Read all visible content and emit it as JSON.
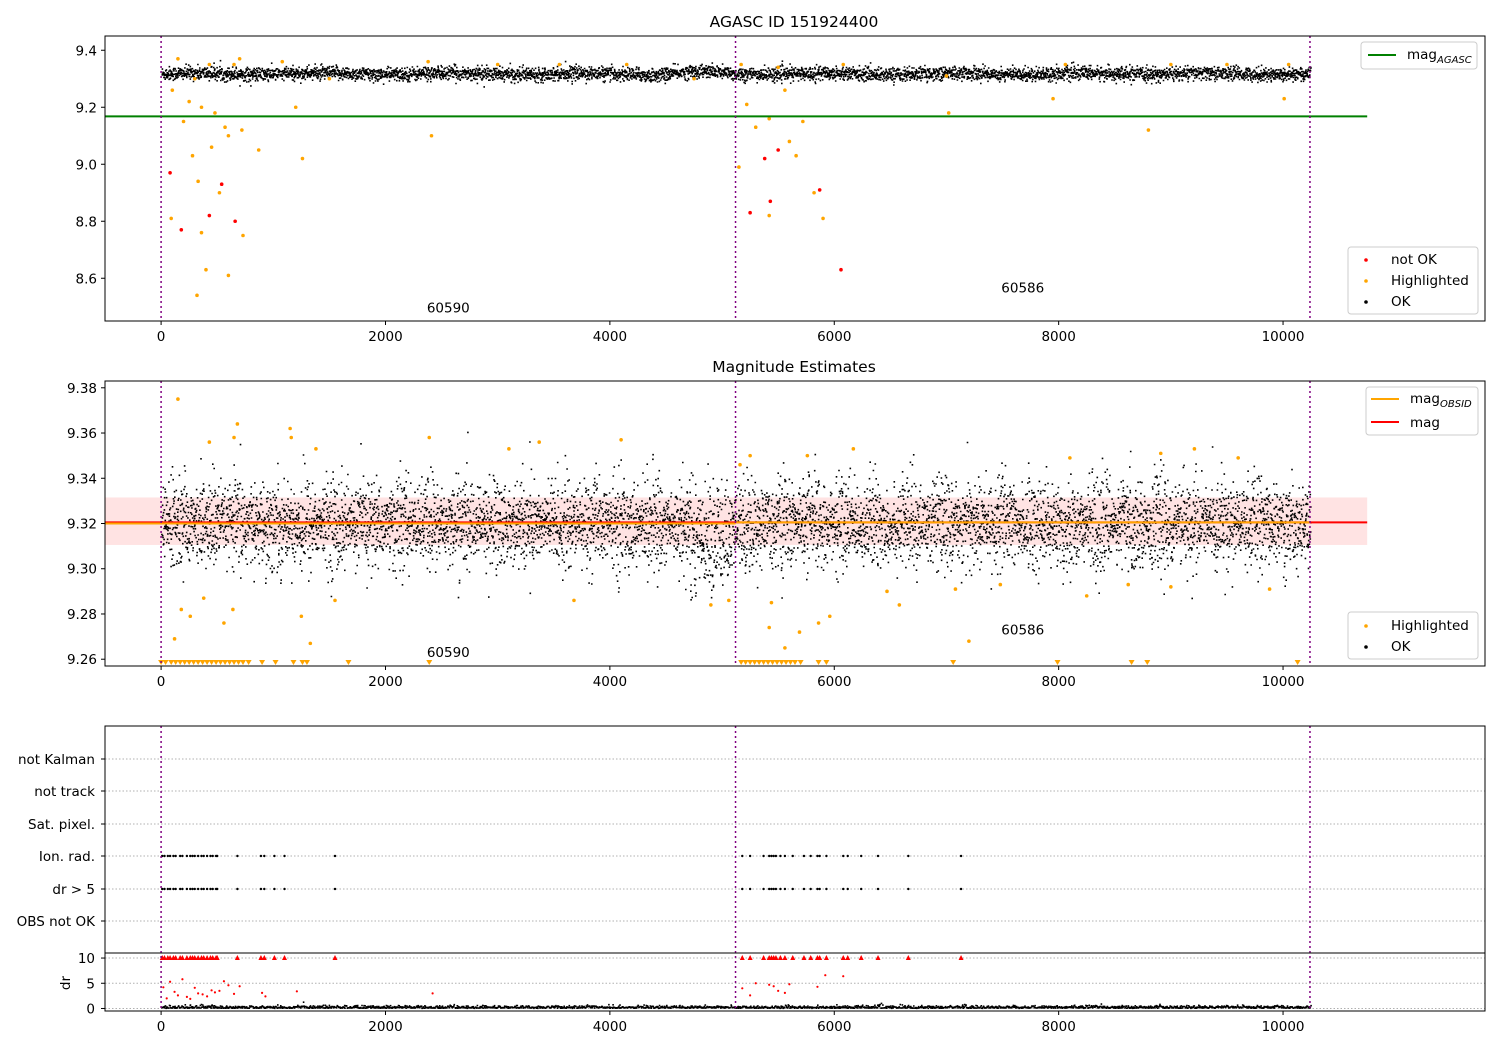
{
  "figure": {
    "obs_boundaries_x": [
      0,
      5120,
      10240
    ],
    "obs_labels": [
      {
        "text": "60590",
        "x": 2560,
        "panel": 0,
        "y": 8.48
      },
      {
        "text": "60586",
        "x": 7680,
        "panel": 0,
        "y": 8.55
      },
      {
        "text": "60590",
        "x": 2560,
        "panel": 1,
        "y": 9.261
      },
      {
        "text": "60586",
        "x": 7680,
        "panel": 1,
        "y": 9.271
      }
    ],
    "colors": {
      "ok": "#000000",
      "highlighted": "#ffa500",
      "not_ok": "#ff0000",
      "agasc_line": "#008000",
      "obs_line": "#ffa500",
      "mag_line": "#ff0000",
      "band": "#ffc0c0",
      "boundary": "#800080"
    }
  },
  "chart_data": [
    {
      "type": "scatter",
      "title": "AGASC ID 151924400",
      "xlim": [
        -500,
        11800
      ],
      "ylim": [
        8.45,
        9.45
      ],
      "x_ticks": [
        "0",
        "2000",
        "4000",
        "6000",
        "8000",
        "10000"
      ],
      "y_ticks": [
        "8.6",
        "8.8",
        "9.0",
        "9.2",
        "9.4"
      ],
      "hlines": [
        {
          "name": "mag_AGASC",
          "y": 9.168,
          "color": "#008000"
        }
      ],
      "series": [
        {
          "name": "not OK",
          "color": "#ff0000",
          "points": [
            [
              80,
              8.97
            ],
            [
              180,
              8.77
            ],
            [
              430,
              8.82
            ],
            [
              540,
              8.93
            ],
            [
              660,
              8.8
            ],
            [
              5380,
              9.02
            ],
            [
              5250,
              8.83
            ],
            [
              5430,
              8.87
            ],
            [
              5870,
              8.91
            ],
            [
              6060,
              8.63
            ],
            [
              5500,
              9.05
            ]
          ]
        },
        {
          "name": "Highlighted",
          "color": "#ffa500",
          "points": [
            [
              150,
              9.37
            ],
            [
              300,
              9.3
            ],
            [
              430,
              9.35
            ],
            [
              650,
              9.35
            ],
            [
              700,
              9.37
            ],
            [
              1080,
              9.36
            ],
            [
              1500,
              9.3
            ],
            [
              2380,
              9.36
            ],
            [
              3000,
              9.35
            ],
            [
              3550,
              9.35
            ],
            [
              4150,
              9.35
            ],
            [
              4750,
              9.3
            ],
            [
              5170,
              9.35
            ],
            [
              5500,
              9.34
            ],
            [
              6080,
              9.35
            ],
            [
              7000,
              9.31
            ],
            [
              8060,
              9.35
            ],
            [
              9000,
              9.35
            ],
            [
              9500,
              9.35
            ],
            [
              10050,
              9.35
            ],
            [
              100,
              9.26
            ],
            [
              250,
              9.22
            ],
            [
              360,
              9.2
            ],
            [
              480,
              9.18
            ],
            [
              570,
              9.13
            ],
            [
              720,
              9.12
            ],
            [
              870,
              9.05
            ],
            [
              1200,
              9.2
            ],
            [
              1260,
              9.02
            ],
            [
              2410,
              9.1
            ],
            [
              200,
              9.15
            ],
            [
              280,
              9.03
            ],
            [
              330,
              8.94
            ],
            [
              450,
              9.06
            ],
            [
              520,
              8.9
            ],
            [
              600,
              9.1
            ],
            [
              90,
              8.81
            ],
            [
              400,
              8.63
            ],
            [
              320,
              8.54
            ],
            [
              600,
              8.61
            ],
            [
              730,
              8.75
            ],
            [
              360,
              8.76
            ],
            [
              5220,
              9.21
            ],
            [
              5300,
              9.13
            ],
            [
              5420,
              9.16
            ],
            [
              5560,
              9.26
            ],
            [
              5600,
              9.08
            ],
            [
              5720,
              9.15
            ],
            [
              5820,
              8.9
            ],
            [
              5900,
              8.81
            ],
            [
              5150,
              8.99
            ],
            [
              5420,
              8.82
            ],
            [
              5660,
              9.03
            ],
            [
              7950,
              9.23
            ],
            [
              8800,
              9.12
            ],
            [
              10010,
              9.23
            ],
            [
              7020,
              9.18
            ]
          ]
        },
        {
          "name": "OK",
          "color": "#000000",
          "band": [
            9.29,
            9.35
          ]
        }
      ],
      "legends": [
        {
          "entries": [
            "mag_AGASC"
          ],
          "loc": "upper right"
        },
        {
          "entries": [
            "not OK",
            "Highlighted",
            "OK"
          ],
          "loc": "lower right"
        }
      ]
    },
    {
      "type": "scatter",
      "title": "Magnitude Estimates",
      "xlim": [
        -500,
        11800
      ],
      "ylim": [
        9.257,
        9.383
      ],
      "x_ticks": [
        "0",
        "2000",
        "4000",
        "6000",
        "8000",
        "10000"
      ],
      "y_ticks": [
        "9.26",
        "9.28",
        "9.30",
        "9.32",
        "9.34",
        "9.36",
        "9.38"
      ],
      "hlines": [
        {
          "name": "mag_OBSID",
          "segments": [
            [
              -500,
              5120,
              9.32
            ],
            [
              5120,
              10240,
              9.3205
            ]
          ],
          "color": "#ffa500"
        },
        {
          "name": "mag",
          "y": 9.3205,
          "color": "#ff0000",
          "band": [
            9.3105,
            9.3315
          ]
        }
      ],
      "series": [
        {
          "name": "Highlighted",
          "color": "#ffa500",
          "points": [
            [
              150,
              9.375
            ],
            [
              120,
              9.269
            ],
            [
              180,
              9.282
            ],
            [
              260,
              9.279
            ],
            [
              380,
              9.287
            ],
            [
              430,
              9.356
            ],
            [
              560,
              9.276
            ],
            [
              640,
              9.282
            ],
            [
              650,
              9.358
            ],
            [
              680,
              9.364
            ],
            [
              1150,
              9.362
            ],
            [
              1160,
              9.358
            ],
            [
              1380,
              9.353
            ],
            [
              1250,
              9.279
            ],
            [
              1330,
              9.267
            ],
            [
              1550,
              9.286
            ],
            [
              2390,
              9.358
            ],
            [
              3100,
              9.353
            ],
            [
              3370,
              9.356
            ],
            [
              3680,
              9.286
            ],
            [
              4100,
              9.357
            ],
            [
              4900,
              9.284
            ],
            [
              5060,
              9.286
            ],
            [
              5160,
              9.346
            ],
            [
              5250,
              9.35
            ],
            [
              5420,
              9.274
            ],
            [
              5440,
              9.285
            ],
            [
              5560,
              9.265
            ],
            [
              5690,
              9.272
            ],
            [
              5760,
              9.35
            ],
            [
              5860,
              9.276
            ],
            [
              5960,
              9.279
            ],
            [
              6170,
              9.353
            ],
            [
              6470,
              9.29
            ],
            [
              6580,
              9.284
            ],
            [
              7080,
              9.291
            ],
            [
              7200,
              9.268
            ],
            [
              7480,
              9.293
            ],
            [
              8100,
              9.349
            ],
            [
              8250,
              9.288
            ],
            [
              8620,
              9.293
            ],
            [
              8910,
              9.351
            ],
            [
              9000,
              9.292
            ],
            [
              9210,
              9.353
            ],
            [
              9600,
              9.349
            ],
            [
              9880,
              9.291
            ]
          ],
          "clipped_low_x": [
            0,
            40,
            90,
            130,
            170,
            210,
            250,
            290,
            330,
            370,
            410,
            450,
            490,
            530,
            570,
            610,
            650,
            690,
            730,
            780,
            900,
            1020,
            1180,
            1260,
            1300,
            1670,
            2390,
            5170,
            5210,
            5250,
            5290,
            5330,
            5370,
            5410,
            5450,
            5490,
            5530,
            5570,
            5610,
            5650,
            5700,
            5860,
            5930,
            7060,
            7990,
            8650,
            8790,
            10130
          ]
        },
        {
          "name": "OK",
          "color": "#000000",
          "center": 9.32,
          "spread": 0.015
        }
      ],
      "legends": [
        {
          "entries": [
            "mag_OBSID",
            "mag"
          ],
          "loc": "upper right"
        },
        {
          "entries": [
            "Highlighted",
            "OK"
          ],
          "loc": "lower right"
        }
      ]
    },
    {
      "type": "scatter",
      "title": "",
      "xlim": [
        -500,
        11800
      ],
      "x_ticks": [
        "0",
        "2000",
        "4000",
        "6000",
        "8000",
        "10000"
      ],
      "flag_rows": [
        "not Kalman",
        "not track",
        "Sat. pixel.",
        "Ion. rad.",
        "dr > 5",
        "OBS not OK"
      ],
      "flag_points_x": [
        10,
        30,
        60,
        80,
        110,
        130,
        170,
        190,
        230,
        260,
        280,
        300,
        330,
        360,
        380,
        410,
        440,
        460,
        490,
        500,
        680,
        890,
        920,
        1010,
        1100,
        1550,
        5180,
        5250,
        5370,
        5420,
        5440,
        5460,
        5480,
        5520,
        5560,
        5630,
        5730,
        5790,
        5850,
        5870,
        5930,
        6080,
        6120,
        6240,
        6390,
        6660,
        7130
      ],
      "dr_ylim": [
        -0.5,
        11
      ],
      "dr_ticks": [
        "0",
        "5",
        "10"
      ],
      "dr_label": "dr",
      "dr_highlight_points": [
        [
          20,
          4.2
        ],
        [
          50,
          2.0
        ],
        [
          80,
          5.3
        ],
        [
          120,
          3.3
        ],
        [
          150,
          2.6
        ],
        [
          190,
          5.8
        ],
        [
          230,
          2.3
        ],
        [
          260,
          1.9
        ],
        [
          300,
          4.1
        ],
        [
          330,
          3.0
        ],
        [
          370,
          2.8
        ],
        [
          410,
          2.4
        ],
        [
          450,
          3.6
        ],
        [
          480,
          3.2
        ],
        [
          520,
          3.5
        ],
        [
          560,
          5.4
        ],
        [
          600,
          4.6
        ],
        [
          650,
          2.9
        ],
        [
          700,
          4.4
        ],
        [
          900,
          3.1
        ],
        [
          930,
          2.4
        ],
        [
          1210,
          3.4
        ],
        [
          2420,
          3.0
        ],
        [
          5180,
          4.0
        ],
        [
          5250,
          2.6
        ],
        [
          5300,
          5.0
        ],
        [
          5420,
          4.7
        ],
        [
          5460,
          4.4
        ],
        [
          5500,
          3.5
        ],
        [
          5560,
          3.1
        ],
        [
          5600,
          4.8
        ],
        [
          5850,
          4.3
        ],
        [
          5920,
          6.6
        ],
        [
          6080,
          6.4
        ]
      ]
    }
  ]
}
